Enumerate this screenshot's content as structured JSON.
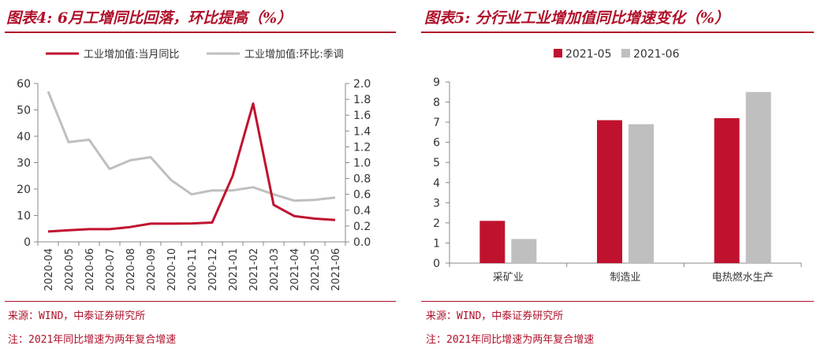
{
  "left": {
    "title": "图表4: 6月工增同比回落，环比提高（%）",
    "source": "来源：WIND，中泰证券研究所",
    "note": "注：2021年同比增速为两年复合增速"
  },
  "right": {
    "title": "图表5: 分行业工业增加值同比增速变化（%）",
    "source": "来源：WIND，中泰证券研究所",
    "note": "注：2021年同比增速为两年复合增速"
  },
  "colors": {
    "red": "#c0122f",
    "gray": "#bfbfbf",
    "accent": "#b0102a"
  },
  "chart_data": [
    {
      "type": "line",
      "title": "6月工增同比回落，环比提高（%）",
      "x": [
        "2020-04",
        "2020-05",
        "2020-06",
        "2020-07",
        "2020-08",
        "2020-09",
        "2020-10",
        "2020-11",
        "2020-12",
        "2021-01",
        "2021-02",
        "2021-03",
        "2021-04",
        "2021-05",
        "2021-06"
      ],
      "series": [
        {
          "name": "工业增加值:当月同比",
          "axis": "left",
          "color": "#c0122f",
          "values": [
            3.9,
            4.4,
            4.8,
            4.8,
            5.6,
            6.9,
            6.9,
            7.0,
            7.3,
            25.0,
            52.4,
            14.0,
            9.8,
            8.8,
            8.3
          ]
        },
        {
          "name": "工业增加值:环比:季调",
          "axis": "right",
          "color": "#bfbfbf",
          "values": [
            1.9,
            1.26,
            1.29,
            0.92,
            1.03,
            1.07,
            0.78,
            0.6,
            0.65,
            0.65,
            0.69,
            0.6,
            0.52,
            0.53,
            0.56
          ]
        }
      ],
      "ylim_left": [
        0,
        60
      ],
      "yticks_left": [
        "0",
        "10",
        "20",
        "30",
        "40",
        "50",
        "60"
      ],
      "ylim_right": [
        0,
        2
      ],
      "yticks_right": [
        "0.0",
        "0.2",
        "0.4",
        "0.6",
        "0.8",
        "1.0",
        "1.2",
        "1.4",
        "1.6",
        "1.8",
        "2.0"
      ],
      "legend": "top-center",
      "grid": false
    },
    {
      "type": "bar",
      "title": "分行业工业增加值同比增速变化（%）",
      "categories": [
        "采矿业",
        "制造业",
        "电热燃水生产"
      ],
      "series": [
        {
          "name": "2021-05",
          "color": "#c0122f",
          "values": [
            2.1,
            7.1,
            7.2
          ]
        },
        {
          "name": "2021-06",
          "color": "#bfbfbf",
          "values": [
            1.2,
            6.9,
            8.5
          ]
        }
      ],
      "ylim": [
        0,
        9
      ],
      "yticks": [
        "0",
        "1",
        "2",
        "3",
        "4",
        "5",
        "6",
        "7",
        "8",
        "9"
      ],
      "legend": "top-center",
      "grid": false
    }
  ]
}
